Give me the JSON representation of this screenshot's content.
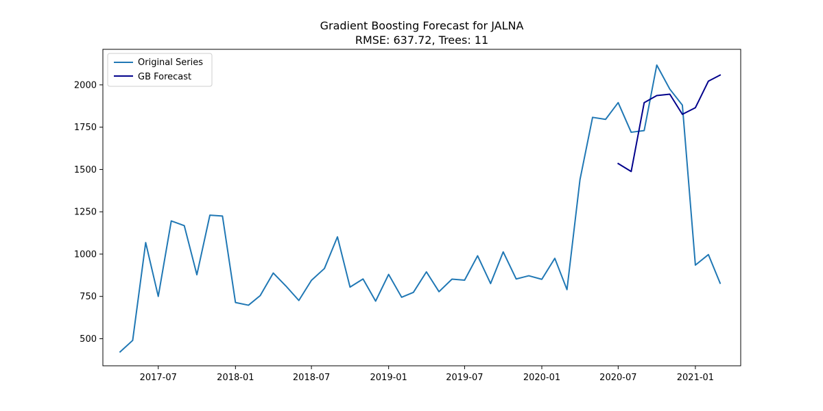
{
  "chart_data": {
    "type": "line",
    "title": "Gradient Boosting Forecast for JALNA",
    "subtitle": "RMSE: 637.72, Trees: 11",
    "xlabel": "",
    "ylabel": "",
    "ylim": [
      340,
      2210
    ],
    "xlim": [
      "2017-02-19",
      "2021-04-19"
    ],
    "x_tick_labels": [
      "2017-07",
      "2018-01",
      "2018-07",
      "2019-01",
      "2019-07",
      "2020-01",
      "2020-07",
      "2021-01"
    ],
    "x_tick_dates": [
      "2017-07-01",
      "2018-01-01",
      "2018-07-01",
      "2019-01-01",
      "2019-07-01",
      "2020-01-01",
      "2020-07-01",
      "2021-01-01"
    ],
    "y_ticks": [
      500,
      750,
      1000,
      1250,
      1500,
      1750,
      2000
    ],
    "y_tick_labels": [
      "500",
      "750",
      "1000",
      "1250",
      "1500",
      "1750",
      "2000"
    ],
    "legend_position": "top-left",
    "series": [
      {
        "name": "Original Series",
        "color": "#1f77b4",
        "x": [
          "2017-04-01",
          "2017-05-01",
          "2017-06-01",
          "2017-07-01",
          "2017-08-01",
          "2017-09-01",
          "2017-10-01",
          "2017-11-01",
          "2017-12-01",
          "2018-01-01",
          "2018-02-01",
          "2018-03-01",
          "2018-04-01",
          "2018-05-01",
          "2018-06-01",
          "2018-07-01",
          "2018-08-01",
          "2018-09-01",
          "2018-10-01",
          "2018-11-01",
          "2018-12-01",
          "2019-01-01",
          "2019-02-01",
          "2019-03-01",
          "2019-04-01",
          "2019-05-01",
          "2019-06-01",
          "2019-07-01",
          "2019-08-01",
          "2019-09-01",
          "2019-10-01",
          "2019-11-01",
          "2019-12-01",
          "2020-01-01",
          "2020-02-01",
          "2020-03-01",
          "2020-04-01",
          "2020-05-01",
          "2020-06-01",
          "2020-07-01",
          "2020-08-01",
          "2020-09-01",
          "2020-10-01",
          "2020-11-01",
          "2020-12-01",
          "2021-01-01",
          "2021-02-01",
          "2021-03-01"
        ],
        "values": [
          422,
          490,
          1068,
          750,
          1196,
          1168,
          878,
          1230,
          1225,
          714,
          698,
          755,
          888,
          812,
          726,
          845,
          915,
          1102,
          805,
          853,
          722,
          880,
          745,
          774,
          895,
          778,
          852,
          846,
          990,
          826,
          1013,
          853,
          872,
          851,
          975,
          790,
          1440,
          1808,
          1796,
          1895,
          1720,
          1730,
          2117,
          1975,
          1880,
          935,
          997,
          828
        ]
      },
      {
        "name": "GB Forecast",
        "color": "#00008b",
        "x": [
          "2020-07-01",
          "2020-08-01",
          "2020-09-01",
          "2020-10-01",
          "2020-11-01",
          "2020-12-01",
          "2021-01-01",
          "2021-02-01",
          "2021-03-01"
        ],
        "values": [
          1535,
          1488,
          1895,
          1937,
          1945,
          1826,
          1865,
          2022,
          2058
        ]
      }
    ]
  }
}
